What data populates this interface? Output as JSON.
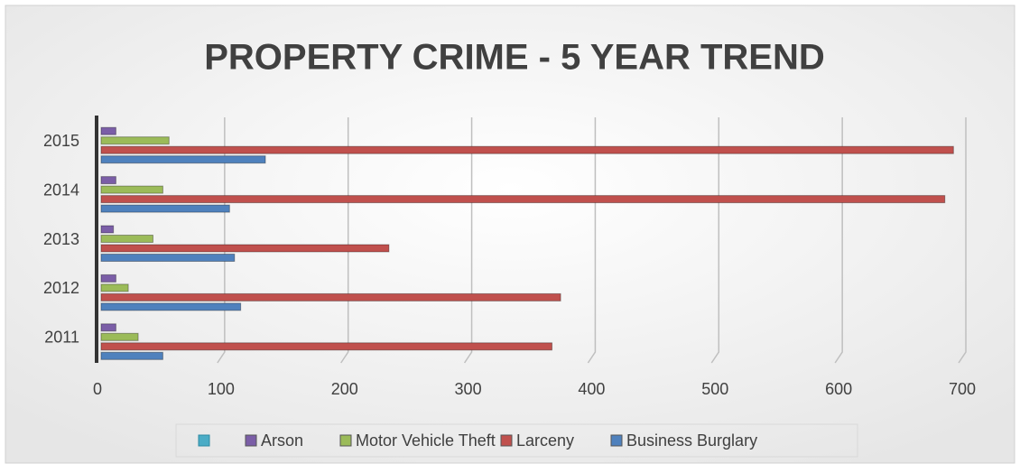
{
  "chart_data": {
    "type": "hbar",
    "title": "PROPERTY CRIME - 5 YEAR TREND",
    "categories": [
      "2011",
      "2012",
      "2013",
      "2014",
      "2015"
    ],
    "series": [
      {
        "name": "Arson",
        "color": "#7b5ea7",
        "values": [
          12,
          12,
          10,
          12,
          12
        ]
      },
      {
        "name": "Motor Vehicle Theft",
        "color": "#9bbb59",
        "values": [
          30,
          22,
          42,
          50,
          55
        ]
      },
      {
        "name": "Larceny",
        "color": "#c0504d",
        "values": [
          365,
          372,
          233,
          683,
          690
        ]
      },
      {
        "name": "Business Burglary",
        "color": "#4f81bd",
        "values": [
          50,
          113,
          108,
          104,
          133
        ]
      }
    ],
    "xlim": [
      0,
      700
    ],
    "xticks": [
      0,
      100,
      200,
      300,
      400,
      500,
      600,
      700
    ],
    "grid": true
  }
}
